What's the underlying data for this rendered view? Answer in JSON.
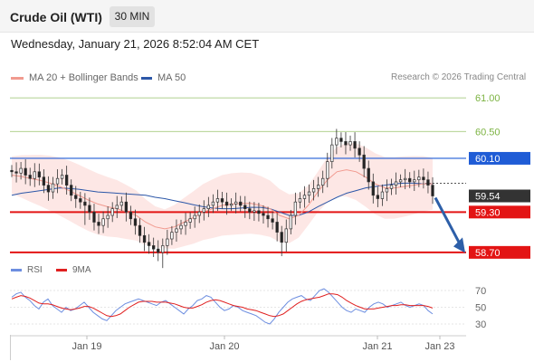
{
  "header": {
    "title": "Crude Oil (WTI)",
    "interval": "30 MIN"
  },
  "timestamp": "Wednesday, January 21, 2026 8:52:04 AM CET",
  "legend": {
    "ma_bb_label": "MA 20 + Bollinger Bands",
    "ma50_label": "MA 50",
    "rsi_label": "RSI",
    "ma9_label": "9MA",
    "ma_bb_color": "#f19a8f",
    "ma50_color": "#2c57a8",
    "rsi_color": "#6d8ee0",
    "ma9_color": "#e02020"
  },
  "credit": "Research © 2026 Trading Central",
  "chart_data": [
    {
      "type": "candlestick",
      "title": "",
      "ylim": [
        58.55,
        61.15
      ],
      "x_labels": [
        "Jan 19",
        "Jan 20",
        "Jan 21",
        "Jan 23"
      ],
      "levels": [
        {
          "value": 61.0,
          "label": "61.00",
          "color": "#7cb342",
          "style": "thin"
        },
        {
          "value": 60.5,
          "label": "60.50",
          "color": "#7cb342",
          "style": "thin"
        },
        {
          "value": 60.1,
          "label": "60.10",
          "color": "#1f5cd6",
          "style": "tag"
        },
        {
          "value": 59.54,
          "label": "59.54",
          "color": "#333333",
          "style": "price"
        },
        {
          "value": 59.3,
          "label": "59.30",
          "color": "#e31414",
          "style": "tag"
        },
        {
          "value": 58.7,
          "label": "58.70",
          "color": "#e31414",
          "style": "tag"
        }
      ],
      "close_series": [
        59.9,
        59.88,
        59.95,
        59.85,
        59.8,
        59.9,
        59.82,
        59.7,
        59.6,
        59.72,
        59.8,
        59.85,
        59.7,
        59.55,
        59.5,
        59.45,
        59.4,
        59.3,
        59.15,
        59.1,
        59.2,
        59.25,
        59.35,
        59.4,
        59.45,
        59.3,
        59.2,
        59.1,
        58.95,
        58.85,
        58.8,
        58.75,
        58.7,
        58.8,
        58.9,
        59.0,
        59.05,
        59.1,
        59.15,
        59.2,
        59.25,
        59.3,
        59.35,
        59.4,
        59.45,
        59.5,
        59.45,
        59.4,
        59.42,
        59.45,
        59.4,
        59.35,
        59.3,
        59.32,
        59.28,
        59.25,
        59.2,
        59.15,
        59.0,
        58.85,
        59.05,
        59.25,
        59.45,
        59.5,
        59.55,
        59.6,
        59.65,
        59.7,
        59.8,
        60.05,
        60.3,
        60.4,
        60.35,
        60.3,
        60.35,
        60.25,
        60.15,
        59.95,
        59.75,
        59.55,
        59.5,
        59.6,
        59.65,
        59.7,
        59.75,
        59.78,
        59.8,
        59.75,
        59.78,
        59.82,
        59.78,
        59.7,
        59.54
      ],
      "ma50_series": [
        59.55,
        59.58,
        59.6,
        59.62,
        59.64,
        59.66,
        59.65,
        59.64,
        59.62,
        59.6,
        59.59,
        59.58,
        59.57,
        59.56,
        59.55,
        59.52,
        59.5,
        59.47,
        59.44,
        59.41,
        59.38,
        59.36,
        59.35,
        59.35,
        59.36,
        59.37,
        59.37,
        59.35,
        59.3,
        59.25,
        59.25,
        59.3,
        59.38,
        59.45,
        59.52,
        59.58,
        59.62,
        59.66,
        59.68,
        59.7,
        59.72,
        59.73,
        59.73,
        59.72,
        59.72
      ],
      "ma20_series": [
        59.85,
        59.83,
        59.8,
        59.77,
        59.73,
        59.68,
        59.62,
        59.55,
        59.48,
        59.42,
        59.38,
        59.35,
        59.3,
        59.25,
        59.15,
        59.08,
        59.05,
        59.08,
        59.15,
        59.22,
        59.3,
        59.35,
        59.4,
        59.42,
        59.43,
        59.43,
        59.4,
        59.35,
        59.25,
        59.2,
        59.25,
        59.4,
        59.6,
        59.78,
        59.9,
        59.93,
        59.9,
        59.82,
        59.72,
        59.66,
        59.66,
        59.68,
        59.7,
        59.72,
        59.72
      ],
      "forecast_arrow": {
        "from": 59.54,
        "to": 58.72
      }
    },
    {
      "type": "line",
      "title": "",
      "y_ticks": [
        70,
        50,
        30
      ],
      "ylim": [
        20,
        80
      ],
      "series": [
        {
          "name": "RSI",
          "values": [
            62,
            66,
            68,
            62,
            58,
            52,
            48,
            56,
            60,
            52,
            48,
            44,
            50,
            46,
            48,
            52,
            56,
            50,
            44,
            40,
            36,
            34,
            40,
            46,
            50,
            54,
            56,
            58,
            60,
            58,
            56,
            54,
            52,
            56,
            58,
            54,
            50,
            46,
            42,
            48,
            52,
            58,
            60,
            64,
            62,
            56,
            50,
            46,
            48,
            52,
            50,
            46,
            44,
            42,
            40,
            36,
            32,
            30,
            36,
            44,
            50,
            56,
            60,
            62,
            64,
            60,
            58,
            64,
            70,
            72,
            68,
            62,
            56,
            50,
            46,
            44,
            48,
            46,
            44,
            50,
            54,
            56,
            54,
            50,
            52,
            54,
            56,
            52,
            50,
            52,
            54,
            52,
            46,
            42
          ]
        },
        {
          "name": "9MA",
          "values": [
            60,
            62,
            64,
            63,
            61,
            58,
            55,
            54,
            54,
            53,
            51,
            49,
            48,
            47,
            48,
            49,
            51,
            51,
            49,
            46,
            43,
            40,
            39,
            40,
            42,
            46,
            50,
            53,
            56,
            57,
            57,
            57,
            56,
            56,
            56,
            55,
            54,
            52,
            50,
            49,
            49,
            51,
            53,
            56,
            58,
            59,
            58,
            56,
            54,
            52,
            51,
            50,
            48,
            47,
            46,
            44,
            42,
            40,
            39,
            40,
            42,
            46,
            50,
            54,
            57,
            59,
            60,
            61,
            62,
            64,
            66,
            66,
            65,
            62,
            58,
            55,
            52,
            50,
            48,
            48,
            48,
            49,
            50,
            51,
            52,
            52,
            53,
            53,
            52,
            52,
            52,
            52,
            51,
            49
          ]
        }
      ]
    }
  ]
}
